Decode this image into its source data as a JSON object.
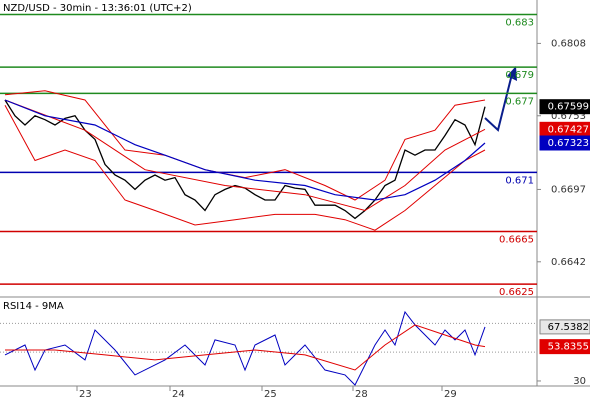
{
  "chart_data": [
    {
      "type": "line",
      "title": "NZD/USD - 30min - 13:36:01 (UTC+2)",
      "xlim": [
        -0.5,
        53.2
      ],
      "ylim": [
        0.6616,
        0.6841
      ],
      "yticks": [
        0.6808,
        0.6753,
        0.6697,
        0.6642
      ],
      "levels": [
        {
          "value": 0.683,
          "color": "#1f8a1f"
        },
        {
          "value": 0.679,
          "color": "#1f8a1f"
        },
        {
          "value": 0.677,
          "color": "#1f8a1f"
        },
        {
          "value": 0.671,
          "color": "#0000b0"
        },
        {
          "value": 0.6665,
          "color": "#d00000"
        },
        {
          "value": 0.6625,
          "color": "#d00000"
        }
      ],
      "tags": [
        {
          "value": 0.67599,
          "color": "#000000"
        },
        {
          "value": 0.67427,
          "color": "#e00000"
        },
        {
          "value": 0.67323,
          "color": "#0000c0"
        }
      ],
      "series": [
        {
          "color": "#000000",
          "width": 1.3,
          "x": [
            0,
            1,
            2,
            3,
            4,
            5,
            6,
            7,
            8,
            9,
            10,
            11,
            12,
            13,
            14,
            15,
            16,
            17,
            18,
            19,
            20,
            21,
            22,
            23,
            24,
            25,
            26,
            27,
            28,
            29,
            30,
            31,
            32,
            33,
            34,
            35,
            36,
            37,
            38,
            39,
            40,
            41,
            42,
            43,
            44,
            45,
            46,
            47,
            48
          ],
          "values": [
            0.6765,
            0.6753,
            0.6746,
            0.6753,
            0.675,
            0.6746,
            0.6751,
            0.6753,
            0.6742,
            0.6735,
            0.6716,
            0.6708,
            0.6704,
            0.6697,
            0.6704,
            0.6708,
            0.6704,
            0.6706,
            0.6693,
            0.6689,
            0.6681,
            0.6693,
            0.6697,
            0.67,
            0.6698,
            0.6693,
            0.6689,
            0.6689,
            0.67,
            0.6698,
            0.6697,
            0.6685,
            0.6685,
            0.6685,
            0.6681,
            0.6675,
            0.6681,
            0.6689,
            0.67,
            0.6704,
            0.6727,
            0.6723,
            0.6727,
            0.6727,
            0.6738,
            0.675,
            0.6746,
            0.6731,
            0.67599
          ]
        },
        {
          "color": "#e00000",
          "width": 1,
          "x": [
            0,
            4,
            8,
            12,
            16,
            20,
            24,
            28,
            32,
            35,
            38,
            40,
            43,
            45,
            48
          ],
          "values": [
            0.6769,
            0.6772,
            0.6765,
            0.6727,
            0.6723,
            0.6712,
            0.6706,
            0.6712,
            0.67,
            0.6689,
            0.6704,
            0.6735,
            0.6742,
            0.6761,
            0.6765
          ]
        },
        {
          "color": "#e00000",
          "width": 1,
          "x": [
            0,
            8,
            14,
            22,
            30,
            36,
            40,
            44,
            48
          ],
          "values": [
            0.6765,
            0.6742,
            0.6712,
            0.67,
            0.6693,
            0.6681,
            0.67,
            0.6727,
            0.67427
          ]
        },
        {
          "color": "#e00000",
          "width": 1,
          "x": [
            0,
            3,
            6,
            9,
            12,
            15,
            19,
            23,
            27,
            31,
            34,
            37,
            40,
            43,
            46,
            48
          ],
          "values": [
            0.6761,
            0.6719,
            0.6727,
            0.6719,
            0.6689,
            0.6681,
            0.667,
            0.6674,
            0.6678,
            0.6678,
            0.6674,
            0.6666,
            0.6681,
            0.67,
            0.6719,
            0.6727
          ]
        },
        {
          "color": "#0000c0",
          "width": 1.2,
          "x": [
            0,
            4,
            9,
            13,
            16,
            20,
            25,
            30,
            33,
            37,
            40,
            43,
            46,
            48
          ],
          "values": [
            0.6765,
            0.6753,
            0.6746,
            0.6731,
            0.6723,
            0.6712,
            0.6704,
            0.67,
            0.6693,
            0.6689,
            0.6693,
            0.6704,
            0.6719,
            0.67323
          ]
        }
      ]
    },
    {
      "type": "line",
      "title": "RSI14 - 9MA",
      "xlim": [
        -0.5,
        53.2
      ],
      "ylim": [
        26.5,
        87.6
      ],
      "yticks": [
        30
      ],
      "levels": [
        50,
        70
      ],
      "xticks": [
        {
          "value": 7.2,
          "label": "23"
        },
        {
          "value": 16.5,
          "label": "24"
        },
        {
          "value": 25.7,
          "label": "25"
        },
        {
          "value": 34.8,
          "label": "28"
        },
        {
          "value": 43.7,
          "label": "29"
        }
      ],
      "tags": [
        {
          "value": 67.5382,
          "color": "#e8e8e8"
        },
        {
          "value": 53.8355,
          "color": "#e00000"
        }
      ],
      "series": [
        {
          "color": "#0000c0",
          "width": 1,
          "x": [
            0,
            2,
            3,
            4,
            6,
            8,
            9,
            11,
            13,
            16,
            18,
            20,
            21,
            23,
            24,
            25,
            27,
            28,
            30,
            32,
            34,
            35,
            37,
            38,
            39,
            40,
            41,
            43,
            44,
            45,
            46,
            47,
            48
          ],
          "values": [
            48.1,
            55.0,
            37.6,
            51.5,
            55.0,
            44.6,
            65.4,
            51.5,
            34.2,
            44.6,
            55.0,
            41.1,
            58.5,
            55.0,
            37.6,
            55.0,
            61.9,
            41.1,
            55.0,
            37.6,
            34.2,
            27.2,
            55.0,
            65.4,
            55.0,
            77.9,
            68.9,
            55.0,
            65.4,
            58.5,
            65.4,
            48.1,
            67.5382
          ]
        },
        {
          "color": "#e00000",
          "width": 1,
          "x": [
            0,
            5,
            10,
            15,
            20,
            25,
            30,
            35,
            38,
            41,
            44,
            47,
            48
          ],
          "values": [
            51.5,
            51.5,
            48.1,
            44.6,
            48.1,
            51.5,
            48.1,
            37.6,
            55.0,
            68.9,
            61.9,
            55.0,
            53.8355
          ]
        }
      ]
    }
  ]
}
